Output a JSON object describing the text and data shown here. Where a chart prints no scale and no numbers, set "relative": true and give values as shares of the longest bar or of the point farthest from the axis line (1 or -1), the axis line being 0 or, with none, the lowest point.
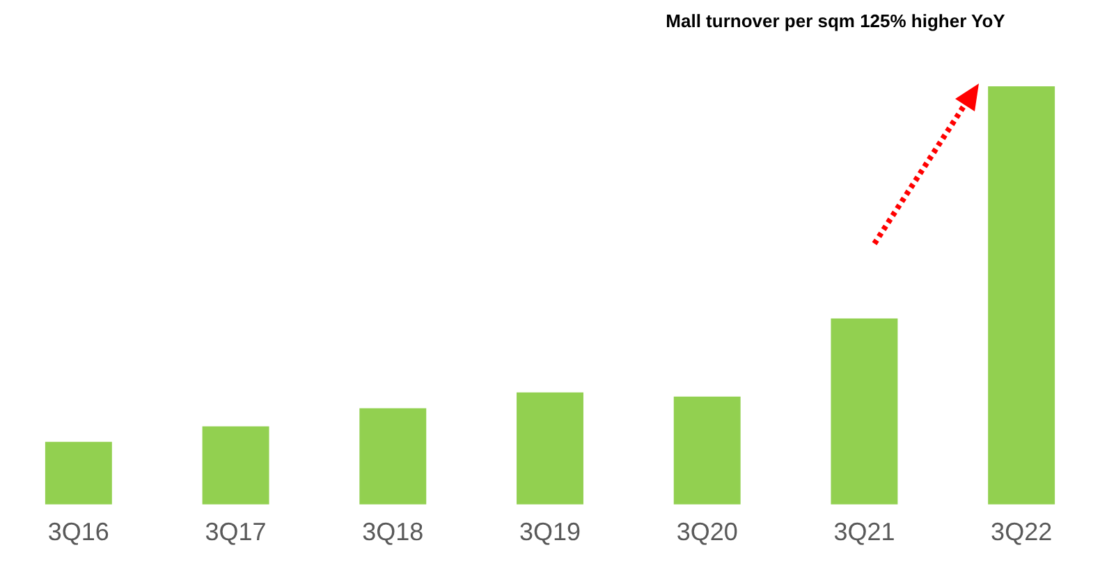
{
  "chart_data": {
    "type": "bar",
    "relative": true,
    "categories": [
      "3Q16",
      "3Q17",
      "3Q18",
      "3Q19",
      "3Q20",
      "3Q21",
      "3Q22"
    ],
    "values": [
      0.15,
      0.187,
      0.23,
      0.268,
      0.258,
      0.445,
      1
    ],
    "color": "#92d050",
    "grid": false,
    "legend": false,
    "annotations": [
      "Mall turnover per sqm 125% higher YoY"
    ]
  }
}
